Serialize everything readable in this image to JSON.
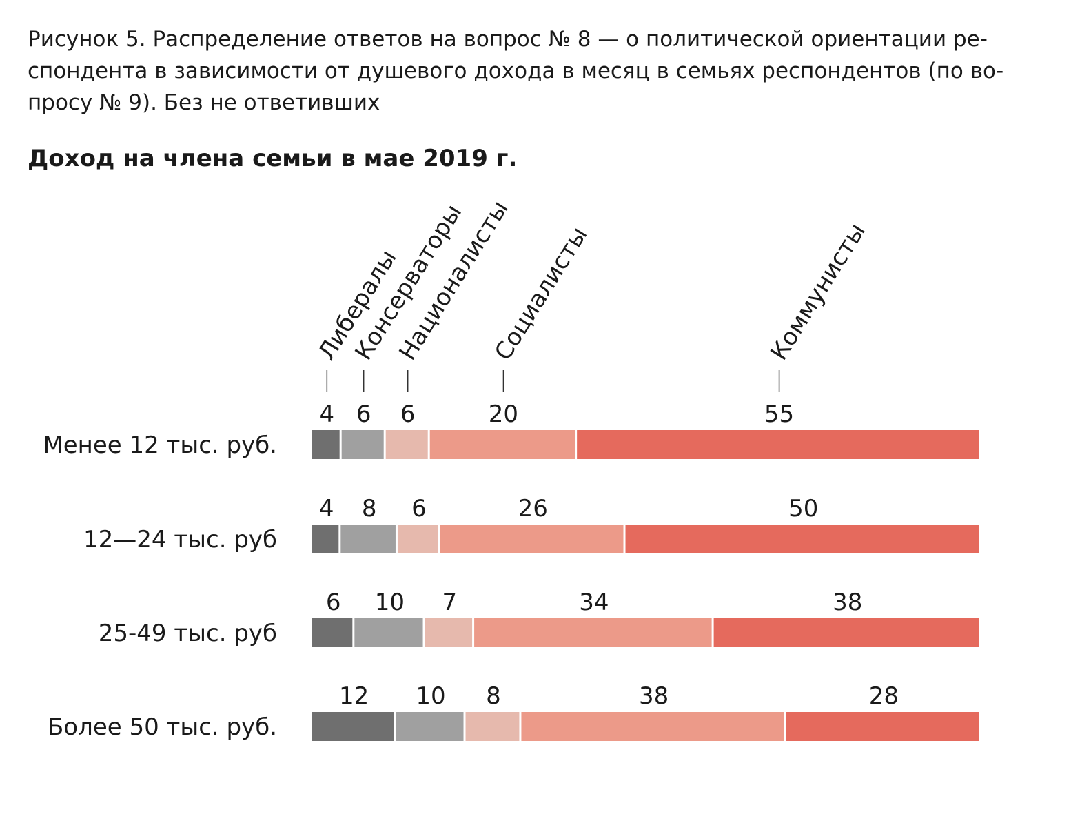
{
  "caption_lines": [
    "Рисунок 5. Распределение ответов на вопрос № 8 — о политической ориентации ре-",
    "спондента в зависимости от душевого дохода в месяц в семьях респондентов (по во-",
    "просу № 9). Без не ответивших"
  ],
  "chart_data": {
    "type": "bar",
    "orientation": "horizontal",
    "stacked": true,
    "subtitle": "Доход на члена семьи в мае 2019 г.",
    "categories": [
      "Менее 12 тыс. руб.",
      "12—24 тыс. руб",
      "25-49 тыс. руб",
      "Более 50 тыс. руб."
    ],
    "series": [
      {
        "name": "Либералы",
        "values": [
          4,
          4,
          6,
          12
        ],
        "color": "#6f6f6f"
      },
      {
        "name": "Консерваторы",
        "values": [
          6,
          8,
          10,
          10
        ],
        "color": "#a0a0a0"
      },
      {
        "name": "Националисты",
        "values": [
          6,
          6,
          7,
          8
        ],
        "color": "#e6b9ad"
      },
      {
        "name": "Социалисты",
        "values": [
          20,
          26,
          34,
          38
        ],
        "color": "#ec9a89"
      },
      {
        "name": "Коммунисты",
        "values": [
          55,
          50,
          38,
          28
        ],
        "color": "#e56a5d"
      }
    ],
    "legend": "rotated labels above first bar with leader ticks",
    "grid": false
  }
}
